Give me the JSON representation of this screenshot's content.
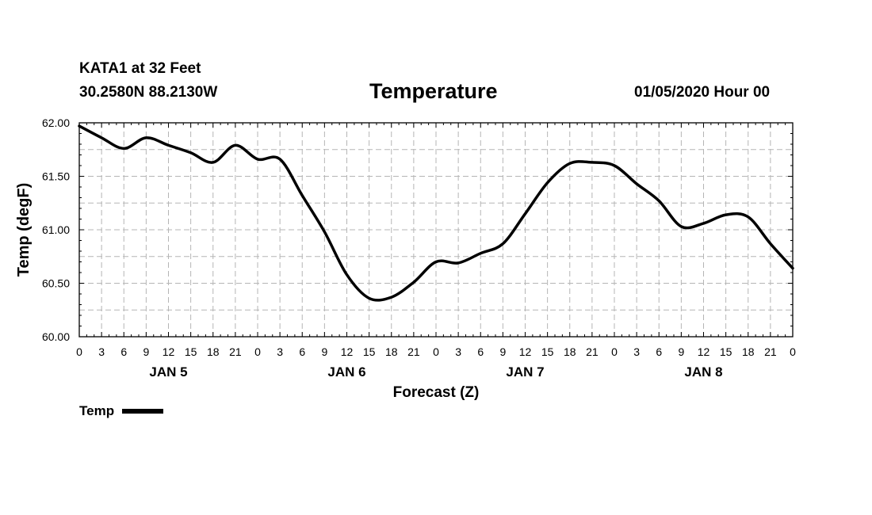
{
  "header": {
    "station": "KATA1 at 32 Feet",
    "coords": "30.2580N 88.2130W",
    "title": "Temperature",
    "issued": "01/05/2020 Hour 00"
  },
  "legend": {
    "label": "Temp",
    "color": "#000000"
  },
  "chart_data": {
    "type": "line",
    "title": "Temperature",
    "xlabel": "Forecast (Z)",
    "ylabel": "Temp (degF)",
    "ylim": [
      60.0,
      62.0
    ],
    "y_ticks": [
      "60.00",
      "60.50",
      "61.00",
      "61.50",
      "62.00"
    ],
    "x_ticks": [
      "0",
      "3",
      "6",
      "9",
      "12",
      "15",
      "18",
      "21",
      "0",
      "3",
      "6",
      "9",
      "12",
      "15",
      "18",
      "21",
      "0",
      "3",
      "6",
      "9",
      "12",
      "15",
      "18",
      "21",
      "0",
      "3",
      "6",
      "9",
      "12",
      "15",
      "18",
      "21",
      "0"
    ],
    "day_labels": [
      "JAN 5",
      "JAN 6",
      "JAN 7",
      "JAN 8"
    ],
    "grid": true,
    "legend_position": "bottom-left",
    "series": [
      {
        "name": "Temp",
        "color": "#000000",
        "x_hours": [
          0,
          3,
          6,
          9,
          12,
          15,
          18,
          21,
          24,
          27,
          30,
          33,
          36,
          39,
          42,
          45,
          48,
          51,
          54,
          57,
          60,
          63,
          66,
          69,
          72,
          75,
          78,
          81,
          84,
          87,
          90,
          93,
          96
        ],
        "values": [
          61.97,
          61.86,
          61.76,
          61.86,
          61.79,
          61.72,
          61.63,
          61.79,
          61.66,
          61.66,
          61.32,
          60.98,
          60.58,
          60.36,
          60.37,
          60.51,
          60.7,
          60.69,
          60.78,
          60.87,
          61.15,
          61.44,
          61.62,
          61.63,
          61.6,
          61.43,
          61.27,
          61.03,
          61.06,
          61.14,
          61.12,
          60.87,
          60.64
        ]
      }
    ]
  }
}
